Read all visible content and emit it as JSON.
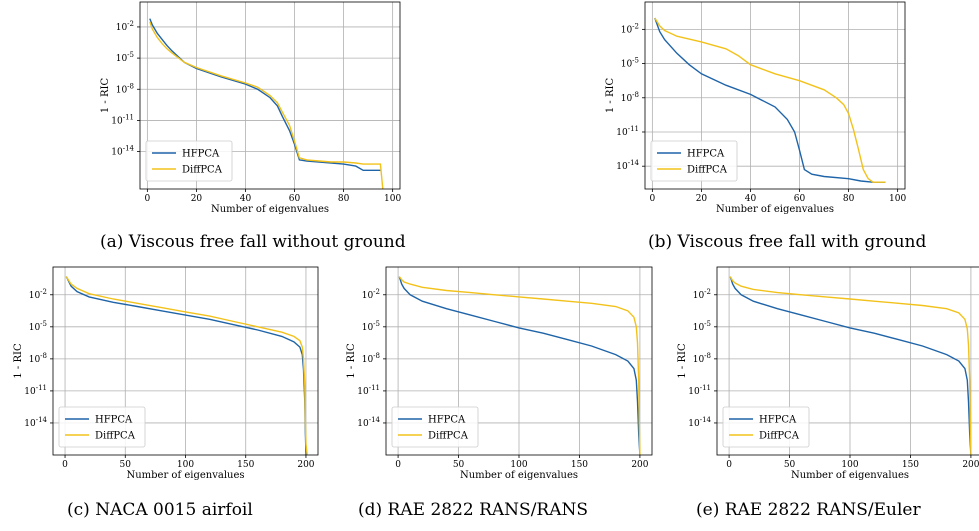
{
  "colors": {
    "hfpca": "#1f64a8",
    "diffpca": "#f2c21b",
    "grid": "#b0b0b0"
  },
  "captions": {
    "a": "(a) Viscous free fall without ground",
    "b": "(b) Viscous free fall with ground",
    "c": "(c) NACA 0015 airfoil",
    "d": "(d) RAE 2822 RANS/RANS",
    "e": "(e) RAE 2822 RANS/Euler"
  },
  "chart_data": [
    {
      "id": "a",
      "type": "line",
      "xlabel": "Number of eigenvalues",
      "ylabel": "1 - RIC",
      "xlim": [
        -3,
        103
      ],
      "ylim_exp": [
        -17.6,
        0.4
      ],
      "xticks": [
        "0",
        "20",
        "40",
        "60",
        "80",
        "100"
      ],
      "xtick_values": [
        0,
        20,
        40,
        60,
        80,
        100
      ],
      "yticks": [
        "10^-2",
        "10^-5",
        "10^-8",
        "10^-11",
        "10^-14"
      ],
      "ytick_values_exp": [
        -2,
        -5,
        -8,
        -11,
        -14
      ],
      "legend": "lower-left",
      "grid": true,
      "log_y": true,
      "series": [
        {
          "name": "HFPCA",
          "x": [
            1,
            2,
            4,
            6,
            8,
            10,
            15,
            20,
            30,
            40,
            45,
            50,
            53,
            55,
            58,
            60,
            62,
            65,
            70,
            75,
            80,
            85,
            88,
            90,
            95
          ],
          "y_exp": [
            -1.2,
            -1.8,
            -2.6,
            -3.2,
            -3.8,
            -4.3,
            -5.4,
            -6.0,
            -6.8,
            -7.5,
            -8.0,
            -8.8,
            -9.6,
            -10.6,
            -12.0,
            -13.3,
            -14.8,
            -14.9,
            -15.0,
            -15.1,
            -15.2,
            -15.4,
            -15.8,
            -15.8,
            -15.8
          ]
        },
        {
          "name": "DiffPCA",
          "x": [
            1,
            2,
            4,
            6,
            8,
            10,
            15,
            20,
            30,
            40,
            45,
            50,
            53,
            55,
            58,
            60,
            62,
            65,
            70,
            75,
            80,
            85,
            88,
            90,
            95,
            96
          ],
          "y_exp": [
            -1.5,
            -2.2,
            -3.0,
            -3.6,
            -4.1,
            -4.5,
            -5.4,
            -5.9,
            -6.7,
            -7.4,
            -7.8,
            -8.6,
            -9.3,
            -10.2,
            -11.5,
            -13.0,
            -14.6,
            -14.8,
            -14.9,
            -15.0,
            -15.0,
            -15.1,
            -15.2,
            -15.2,
            -15.2,
            -17.6
          ]
        }
      ]
    },
    {
      "id": "b",
      "type": "line",
      "xlabel": "Number of eigenvalues",
      "ylabel": "1 - RIC",
      "xlim": [
        -3,
        103
      ],
      "ylim_exp": [
        -16.0,
        0.4
      ],
      "xticks": [
        "0",
        "20",
        "40",
        "60",
        "80",
        "100"
      ],
      "xtick_values": [
        0,
        20,
        40,
        60,
        80,
        100
      ],
      "yticks": [
        "10^-2",
        "10^-5",
        "10^-8",
        "10^-11",
        "10^-14"
      ],
      "ytick_values_exp": [
        -2,
        -5,
        -8,
        -11,
        -14
      ],
      "legend": "lower-left",
      "grid": true,
      "log_y": true,
      "series": [
        {
          "name": "HFPCA",
          "x": [
            1,
            3,
            5,
            10,
            15,
            20,
            30,
            40,
            50,
            55,
            58,
            60,
            62,
            65,
            70,
            80,
            85,
            90,
            95
          ],
          "y_exp": [
            -1.0,
            -2.2,
            -2.9,
            -4.1,
            -5.1,
            -5.9,
            -6.9,
            -7.7,
            -8.8,
            -9.9,
            -11.0,
            -12.6,
            -14.3,
            -14.7,
            -14.9,
            -15.1,
            -15.3,
            -15.4,
            -15.4
          ]
        },
        {
          "name": "DiffPCA",
          "x": [
            1,
            3,
            5,
            10,
            20,
            30,
            35,
            40,
            50,
            60,
            70,
            75,
            78,
            80,
            82,
            84,
            86,
            88,
            90,
            95
          ],
          "y_exp": [
            -1.0,
            -1.7,
            -2.1,
            -2.6,
            -3.1,
            -3.7,
            -4.3,
            -5.1,
            -5.9,
            -6.5,
            -7.3,
            -8.0,
            -8.6,
            -9.4,
            -10.8,
            -12.5,
            -14.3,
            -15.1,
            -15.4,
            -15.4
          ]
        }
      ]
    },
    {
      "id": "c",
      "type": "line",
      "xlabel": "Number of eigenvalues",
      "ylabel": "1 - RIC",
      "xlim": [
        -10,
        210
      ],
      "ylim_exp": [
        -17.0,
        0.6
      ],
      "xticks": [
        "0",
        "50",
        "100",
        "150",
        "200"
      ],
      "xtick_values": [
        0,
        50,
        100,
        150,
        200
      ],
      "yticks": [
        "10^-2",
        "10^-5",
        "10^-8",
        "10^-11",
        "10^-14"
      ],
      "ytick_values_exp": [
        -2,
        -5,
        -8,
        -11,
        -14
      ],
      "legend": "lower-left",
      "grid": true,
      "log_y": true,
      "series": [
        {
          "name": "HFPCA",
          "x": [
            1,
            5,
            10,
            20,
            40,
            60,
            80,
            100,
            120,
            140,
            160,
            180,
            190,
            195,
            197,
            198,
            199,
            199.5,
            200
          ],
          "y_exp": [
            -0.3,
            -1.2,
            -1.7,
            -2.2,
            -2.7,
            -3.1,
            -3.5,
            -3.9,
            -4.3,
            -4.8,
            -5.3,
            -5.9,
            -6.4,
            -6.9,
            -7.6,
            -9.0,
            -12.0,
            -15.0,
            -17.0
          ]
        },
        {
          "name": "DiffPCA",
          "x": [
            1,
            5,
            10,
            20,
            40,
            60,
            80,
            100,
            120,
            140,
            160,
            180,
            190,
            195,
            197,
            198,
            199,
            199.5,
            200,
            201
          ],
          "y_exp": [
            -0.3,
            -1.0,
            -1.4,
            -1.9,
            -2.4,
            -2.8,
            -3.2,
            -3.6,
            -4.0,
            -4.5,
            -5.0,
            -5.5,
            -5.9,
            -6.3,
            -6.9,
            -8.0,
            -10.5,
            -14.0,
            -16.0,
            -17.0
          ]
        }
      ]
    },
    {
      "id": "d",
      "type": "line",
      "xlabel": "Number of eigenvalues",
      "ylabel": "1 - RIC",
      "xlim": [
        -10,
        210
      ],
      "ylim_exp": [
        -17.0,
        0.6
      ],
      "xticks": [
        "0",
        "50",
        "100",
        "150",
        "200"
      ],
      "xtick_values": [
        0,
        50,
        100,
        150,
        200
      ],
      "yticks": [
        "10^-2",
        "10^-5",
        "10^-8",
        "10^-11",
        "10^-14"
      ],
      "ytick_values_exp": [
        -2,
        -5,
        -8,
        -11,
        -14
      ],
      "legend": "lower-left",
      "grid": true,
      "log_y": true,
      "series": [
        {
          "name": "HFPCA",
          "x": [
            1,
            3,
            5,
            10,
            20,
            40,
            60,
            80,
            100,
            120,
            140,
            160,
            180,
            190,
            195,
            197,
            198,
            199,
            200
          ],
          "y_exp": [
            -0.3,
            -1.0,
            -1.4,
            -2.0,
            -2.6,
            -3.3,
            -3.9,
            -4.5,
            -5.1,
            -5.6,
            -6.2,
            -6.8,
            -7.6,
            -8.2,
            -8.9,
            -10.0,
            -12.0,
            -15.0,
            -17.0
          ]
        },
        {
          "name": "DiffPCA",
          "x": [
            1,
            3,
            5,
            10,
            20,
            40,
            60,
            80,
            100,
            120,
            140,
            160,
            180,
            190,
            195,
            197,
            198,
            199,
            199.5,
            200
          ],
          "y_exp": [
            -0.3,
            -0.6,
            -0.8,
            -1.0,
            -1.3,
            -1.6,
            -1.8,
            -2.0,
            -2.2,
            -2.4,
            -2.6,
            -2.8,
            -3.1,
            -3.5,
            -4.1,
            -5.0,
            -6.5,
            -10.0,
            -14.0,
            -17.0
          ]
        }
      ]
    },
    {
      "id": "e",
      "type": "line",
      "xlabel": "Number of eigenvalues",
      "ylabel": "1 - RIC",
      "xlim": [
        -10,
        210
      ],
      "ylim_exp": [
        -17.0,
        0.6
      ],
      "xticks": [
        "0",
        "50",
        "100",
        "150",
        "200"
      ],
      "xtick_values": [
        0,
        50,
        100,
        150,
        200
      ],
      "yticks": [
        "10^-2",
        "10^-5",
        "10^-8",
        "10^-11",
        "10^-14"
      ],
      "ytick_values_exp": [
        -2,
        -5,
        -8,
        -11,
        -14
      ],
      "legend": "lower-left",
      "grid": true,
      "log_y": true,
      "series": [
        {
          "name": "HFPCA",
          "x": [
            1,
            3,
            5,
            10,
            20,
            40,
            60,
            80,
            100,
            120,
            140,
            160,
            180,
            190,
            195,
            197,
            198,
            199,
            200
          ],
          "y_exp": [
            -0.3,
            -1.0,
            -1.4,
            -2.0,
            -2.6,
            -3.3,
            -3.9,
            -4.5,
            -5.1,
            -5.6,
            -6.2,
            -6.8,
            -7.6,
            -8.2,
            -8.9,
            -10.0,
            -12.0,
            -15.0,
            -17.0
          ]
        },
        {
          "name": "DiffPCA",
          "x": [
            1,
            3,
            5,
            10,
            20,
            40,
            60,
            80,
            100,
            120,
            140,
            160,
            180,
            190,
            195,
            197,
            198,
            199,
            199.5,
            200
          ],
          "y_exp": [
            -0.3,
            -0.7,
            -0.9,
            -1.2,
            -1.5,
            -1.8,
            -2.0,
            -2.2,
            -2.4,
            -2.6,
            -2.8,
            -3.0,
            -3.3,
            -3.7,
            -4.3,
            -5.2,
            -6.7,
            -10.0,
            -14.0,
            -17.0
          ]
        }
      ]
    }
  ]
}
